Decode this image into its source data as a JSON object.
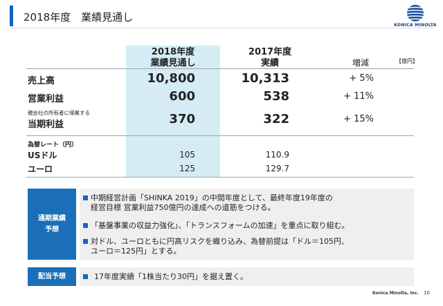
{
  "header": {
    "title": "2018年度　業績見通し",
    "logo_text": "KONICA MINOLTA",
    "logo_icon": "konica-minolta-globe",
    "accent_color": "#1565c0"
  },
  "table": {
    "columns": [
      {
        "line1": "2018年度",
        "line2": "業績見通し"
      },
      {
        "line1": "2017年度",
        "line2": "実績"
      },
      {
        "line1": "増減",
        "line2": ""
      }
    ],
    "unit": "【億円】",
    "rows": [
      {
        "label": "売上高",
        "sublabel": "",
        "forecast": "10,800",
        "actual": "10,313",
        "change": "+ 5%"
      },
      {
        "label": "営業利益",
        "sublabel": "",
        "forecast": "600",
        "actual": "538",
        "change": "+ 11%"
      },
      {
        "label": "当期利益",
        "sublabel": "親会社の所有者に帰属する",
        "forecast": "370",
        "actual": "322",
        "change": "+ 15%"
      }
    ],
    "fx_header": "為替レート（円）",
    "fx_rows": [
      {
        "label": "USドル",
        "forecast": "105",
        "actual": "110.9"
      },
      {
        "label": "ユーロ",
        "forecast": "125",
        "actual": "129.7"
      }
    ],
    "highlight_color": "#d6ecf5"
  },
  "outlook": {
    "label_line1": "通期業績",
    "label_line2": "予想",
    "bullets": [
      {
        "line1": "中期経営計画「SHINKA 2019」の中間年度として、最終年度19年度の",
        "line2": "経営目標 営業利益750億円の達成への道筋をつける。"
      },
      {
        "line1": "「基盤事業の収益力強化」、「トランスフォームの加速」を重点に取り組む。",
        "line2": ""
      },
      {
        "line1": "対ドル、ユーロともに円高リスクを織り込み、為替前提は「ドル＝105円、",
        "line2": "ユーロ＝125円」とする。"
      }
    ]
  },
  "dividend": {
    "label": "配当予想",
    "text": "17年度実績「1株当たり30円」を据え置く。"
  },
  "footer": {
    "company": "Konica Minolta, Inc.",
    "page": "10"
  }
}
